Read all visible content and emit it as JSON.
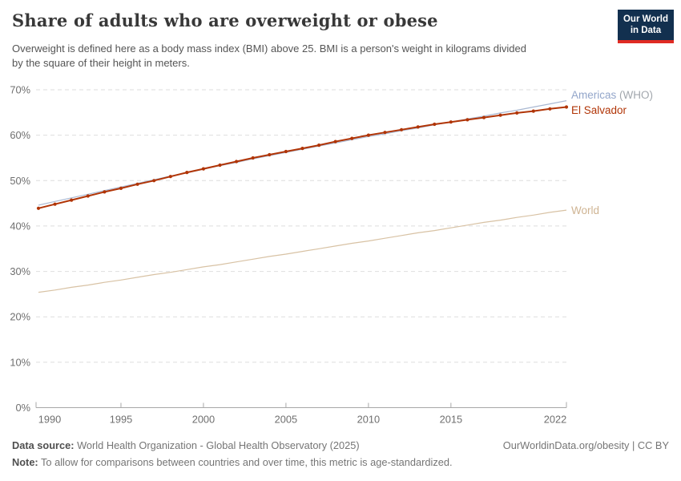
{
  "header": {
    "title": "Share of adults who are overweight or obese",
    "subtitle_line1": "Overweight is defined here as a body mass index (BMI) above 25. BMI is a person's weight in kilograms divided",
    "subtitle_line2": "by the square of their height in meters.",
    "logo": {
      "line1": "Our World",
      "line2": "in Data"
    }
  },
  "legend": [
    {
      "text": "Americas",
      "suffix": " (WHO)",
      "color": "#93A6CA",
      "suffix_color": "#A2A7AD"
    },
    {
      "text": "El Salvador",
      "suffix": "",
      "color": "#B13507",
      "suffix_color": "#B13507"
    },
    {
      "text": "World",
      "suffix": "",
      "color": "#CFB493",
      "suffix_color": "#CFB493"
    }
  ],
  "chart_data": {
    "type": "line",
    "title": "Share of adults who are overweight or obese",
    "xlabel": "",
    "ylabel": "",
    "grid": "horizontal-dashed",
    "legend_position": "right-of-line-ends",
    "xlim": [
      1990,
      2022
    ],
    "ylim": [
      0,
      70
    ],
    "x": [
      1990,
      1991,
      1992,
      1993,
      1994,
      1995,
      1996,
      1997,
      1998,
      1999,
      2000,
      2001,
      2002,
      2003,
      2004,
      2005,
      2006,
      2007,
      2008,
      2009,
      2010,
      2011,
      2012,
      2013,
      2014,
      2015,
      2016,
      2017,
      2018,
      2019,
      2020,
      2021,
      2022
    ],
    "x_ticks": [
      {
        "value": 1990,
        "label": "1990"
      },
      {
        "value": 1995,
        "label": "1995"
      },
      {
        "value": 2000,
        "label": "2000"
      },
      {
        "value": 2005,
        "label": "2005"
      },
      {
        "value": 2010,
        "label": "2010"
      },
      {
        "value": 2015,
        "label": "2015"
      },
      {
        "value": 2022,
        "label": "2022"
      }
    ],
    "y_ticks": [
      {
        "value": 0,
        "label": "0%"
      },
      {
        "value": 10,
        "label": "10%"
      },
      {
        "value": 20,
        "label": "20%"
      },
      {
        "value": 30,
        "label": "30%"
      },
      {
        "value": 40,
        "label": "40%"
      },
      {
        "value": 50,
        "label": "50%"
      },
      {
        "value": 60,
        "label": "60%"
      },
      {
        "value": 70,
        "label": "70%"
      }
    ],
    "series": [
      {
        "name": "World",
        "color": "#D8C2A4",
        "width": 1.2,
        "markers": false,
        "values": [
          25.4,
          25.9,
          26.5,
          27.0,
          27.6,
          28.1,
          28.7,
          29.3,
          29.8,
          30.4,
          31.0,
          31.5,
          32.1,
          32.7,
          33.3,
          33.8,
          34.4,
          35.0,
          35.6,
          36.2,
          36.7,
          37.3,
          37.9,
          38.5,
          39.0,
          39.6,
          40.2,
          40.8,
          41.3,
          41.9,
          42.4,
          43.0,
          43.5
        ]
      },
      {
        "name": "Americas (WHO)",
        "color": "#A9B8D2",
        "width": 1.2,
        "markers": false,
        "values": [
          44.6,
          45.4,
          46.2,
          47.0,
          47.8,
          48.6,
          49.4,
          50.2,
          51.0,
          51.7,
          52.5,
          53.3,
          54.0,
          54.8,
          55.5,
          56.2,
          56.9,
          57.6,
          58.3,
          59.0,
          59.7,
          60.3,
          61.0,
          61.6,
          62.3,
          62.9,
          63.6,
          64.2,
          64.9,
          65.5,
          66.2,
          66.9,
          67.6
        ]
      },
      {
        "name": "El Salvador",
        "color": "#B13507",
        "width": 2,
        "markers": true,
        "values": [
          43.9,
          44.8,
          45.7,
          46.6,
          47.5,
          48.3,
          49.2,
          50.0,
          50.9,
          51.8,
          52.6,
          53.4,
          54.2,
          55.0,
          55.7,
          56.4,
          57.1,
          57.8,
          58.6,
          59.3,
          60.0,
          60.6,
          61.2,
          61.8,
          62.4,
          62.9,
          63.4,
          63.9,
          64.4,
          64.9,
          65.3,
          65.8,
          66.2
        ]
      }
    ]
  },
  "footer": {
    "source_label": "Data source:",
    "source_text": " World Health Organization - Global Health Observatory (2025)",
    "link_text": "OurWorldinData.org/obesity | CC BY",
    "note_label": "Note:",
    "note_text": " To allow for comparisons between countries and over time, this metric is age-standardized."
  }
}
